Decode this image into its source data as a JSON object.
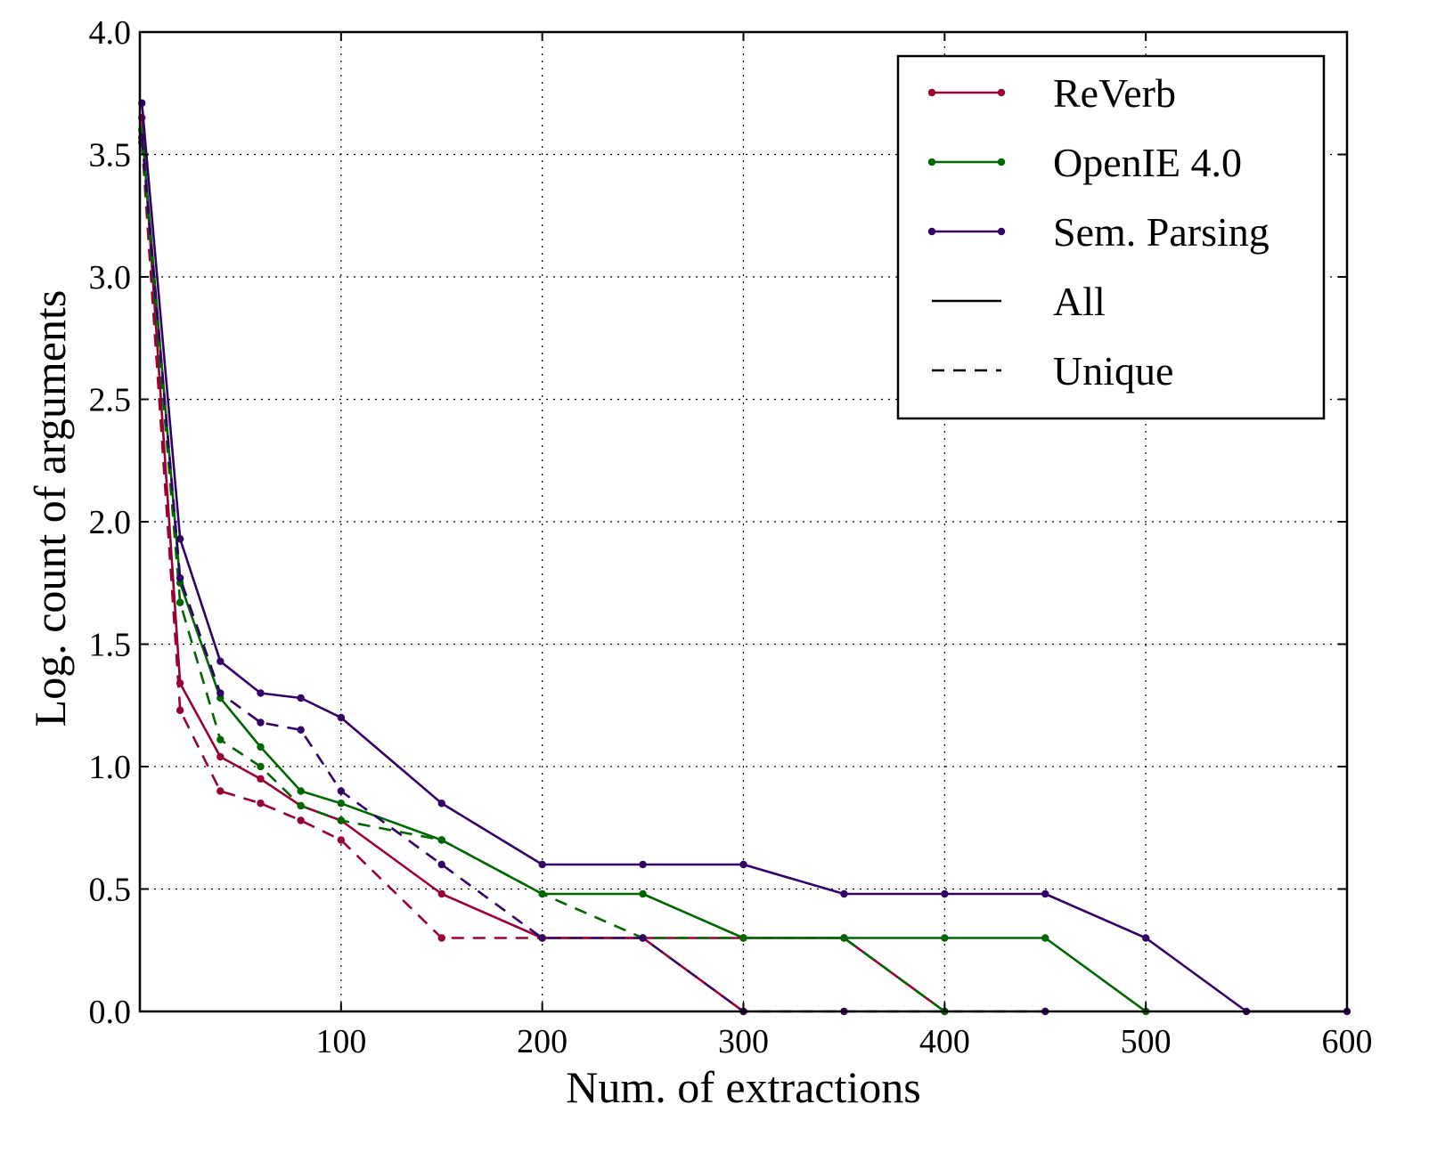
{
  "chart_data": {
    "type": "line",
    "title": "",
    "xlabel": "Num. of extractions",
    "ylabel": "Log. count of arguments",
    "xlim": [
      0,
      600
    ],
    "ylim": [
      0.0,
      4.0
    ],
    "grid": true,
    "legend_position": "top-right",
    "x_ticks": [
      100,
      200,
      300,
      400,
      500,
      600
    ],
    "x_tick_labels": [
      "100",
      "200",
      "300",
      "400",
      "500",
      "600"
    ],
    "y_ticks": [
      0.0,
      0.5,
      1.0,
      1.5,
      2.0,
      2.5,
      3.0,
      3.5,
      4.0
    ],
    "y_tick_labels": [
      "0.0",
      "0.5",
      "1.0",
      "1.5",
      "2.0",
      "2.5",
      "3.0",
      "3.5",
      "4.0"
    ],
    "series": [
      {
        "name": "ReVerb",
        "style": "solid",
        "color": "#990033",
        "legend": true,
        "points": [
          [
            1,
            3.65
          ],
          [
            20,
            1.34
          ],
          [
            40,
            1.04
          ],
          [
            60,
            0.95
          ],
          [
            80,
            0.84
          ],
          [
            100,
            0.78
          ],
          [
            150,
            0.48
          ],
          [
            200,
            0.3
          ],
          [
            250,
            0.3
          ],
          [
            300,
            0.3
          ],
          [
            350,
            0.3
          ],
          [
            400,
            0.0
          ]
        ]
      },
      {
        "name": "ReVerb (Unique)",
        "style": "dashed",
        "color": "#990033",
        "legend": false,
        "points": [
          [
            1,
            3.55
          ],
          [
            20,
            1.23
          ],
          [
            40,
            0.9
          ],
          [
            60,
            0.85
          ],
          [
            80,
            0.78
          ],
          [
            100,
            0.7
          ],
          [
            150,
            0.3
          ],
          [
            200,
            0.3
          ],
          [
            250,
            0.3
          ],
          [
            300,
            0.0
          ]
        ]
      },
      {
        "name": "OpenIE 4.0",
        "style": "solid",
        "color": "#006600",
        "legend": true,
        "points": [
          [
            1,
            3.6
          ],
          [
            20,
            1.75
          ],
          [
            40,
            1.28
          ],
          [
            60,
            1.08
          ],
          [
            80,
            0.9
          ],
          [
            100,
            0.85
          ],
          [
            150,
            0.7
          ],
          [
            200,
            0.48
          ],
          [
            250,
            0.48
          ],
          [
            300,
            0.3
          ],
          [
            350,
            0.3
          ],
          [
            400,
            0.3
          ],
          [
            450,
            0.3
          ],
          [
            500,
            0.0
          ]
        ]
      },
      {
        "name": "OpenIE 4.0 (Unique)",
        "style": "dashed",
        "color": "#006600",
        "legend": false,
        "points": [
          [
            1,
            3.55
          ],
          [
            20,
            1.67
          ],
          [
            40,
            1.11
          ],
          [
            60,
            1.0
          ],
          [
            80,
            0.84
          ],
          [
            100,
            0.78
          ],
          [
            150,
            0.7
          ],
          [
            200,
            0.48
          ],
          [
            250,
            0.3
          ],
          [
            300,
            0.3
          ],
          [
            350,
            0.3
          ],
          [
            400,
            0.0
          ]
        ]
      },
      {
        "name": "Sem. Parsing",
        "style": "solid",
        "color": "#330066",
        "legend": true,
        "points": [
          [
            1,
            3.71
          ],
          [
            20,
            1.93
          ],
          [
            40,
            1.43
          ],
          [
            60,
            1.3
          ],
          [
            80,
            1.28
          ],
          [
            100,
            1.2
          ],
          [
            150,
            0.85
          ],
          [
            200,
            0.6
          ],
          [
            250,
            0.6
          ],
          [
            300,
            0.6
          ],
          [
            350,
            0.48
          ],
          [
            400,
            0.48
          ],
          [
            450,
            0.48
          ],
          [
            500,
            0.3
          ],
          [
            550,
            0.0
          ],
          [
            600,
            0.0
          ]
        ]
      },
      {
        "name": "Sem. Parsing (Unique)",
        "style": "dashed",
        "color": "#330066",
        "legend": false,
        "points": [
          [
            1,
            3.57
          ],
          [
            20,
            1.77
          ],
          [
            40,
            1.3
          ],
          [
            60,
            1.18
          ],
          [
            80,
            1.15
          ],
          [
            100,
            0.9
          ],
          [
            150,
            0.6
          ],
          [
            200,
            0.3
          ],
          [
            250,
            0.3
          ],
          [
            300,
            0.0
          ],
          [
            350,
            0.0
          ],
          [
            450,
            0.0
          ]
        ]
      }
    ],
    "legend": [
      {
        "label": "ReVerb",
        "color": "#990033",
        "style": "solid",
        "marker": true
      },
      {
        "label": "OpenIE 4.0",
        "color": "#006600",
        "style": "solid",
        "marker": true
      },
      {
        "label": "Sem. Parsing",
        "color": "#330066",
        "style": "solid",
        "marker": true
      },
      {
        "label": "All",
        "color": "#000000",
        "style": "solid",
        "marker": false
      },
      {
        "label": "Unique",
        "color": "#000000",
        "style": "dashed",
        "marker": false
      }
    ]
  }
}
